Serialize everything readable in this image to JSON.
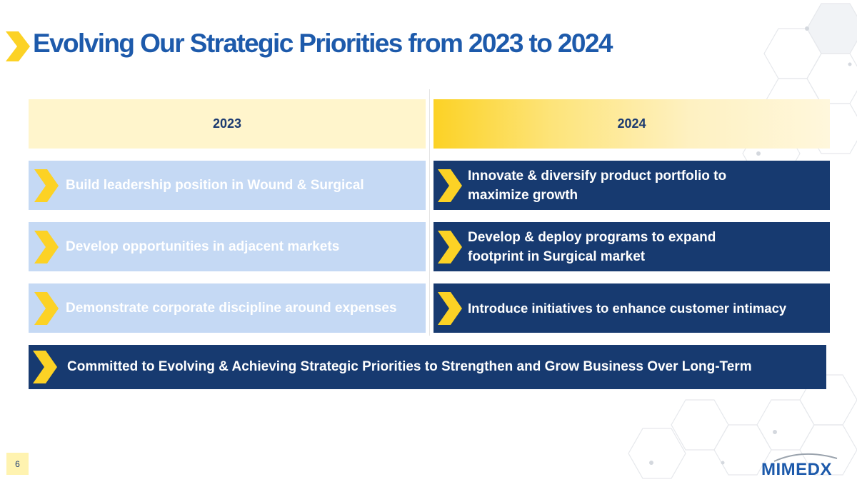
{
  "slide": {
    "title": "Evolving Our Strategic Priorities from 2023 to 2024",
    "page_number": "6"
  },
  "columns": {
    "left_header": "2023",
    "right_header": "2024"
  },
  "priorities_2023": [
    "Build leadership position in Wound & Surgical",
    "Develop opportunities in adjacent markets",
    "Demonstrate corporate discipline around expenses"
  ],
  "priorities_2024": [
    "Innovate & diversify product portfolio to maximize growth",
    "Develop & deploy programs to expand footprint in Surgical market",
    "Introduce initiatives to enhance customer intimacy"
  ],
  "banner": {
    "text": "Committed to Evolving & Achieving Strategic Priorities to Strengthen and Grow Business Over Long-Term"
  },
  "logo": {
    "text": "MIMEDX"
  },
  "colors": {
    "title_blue": "#1d5aab",
    "navy": "#173a70",
    "light_blue": "#c5d9f4",
    "chevron_yellow": "#fcd225",
    "pale_yellow": "#fff5cc"
  },
  "icons": {
    "chevron": "chevron-right-icon",
    "background": "hexagon-pattern"
  }
}
